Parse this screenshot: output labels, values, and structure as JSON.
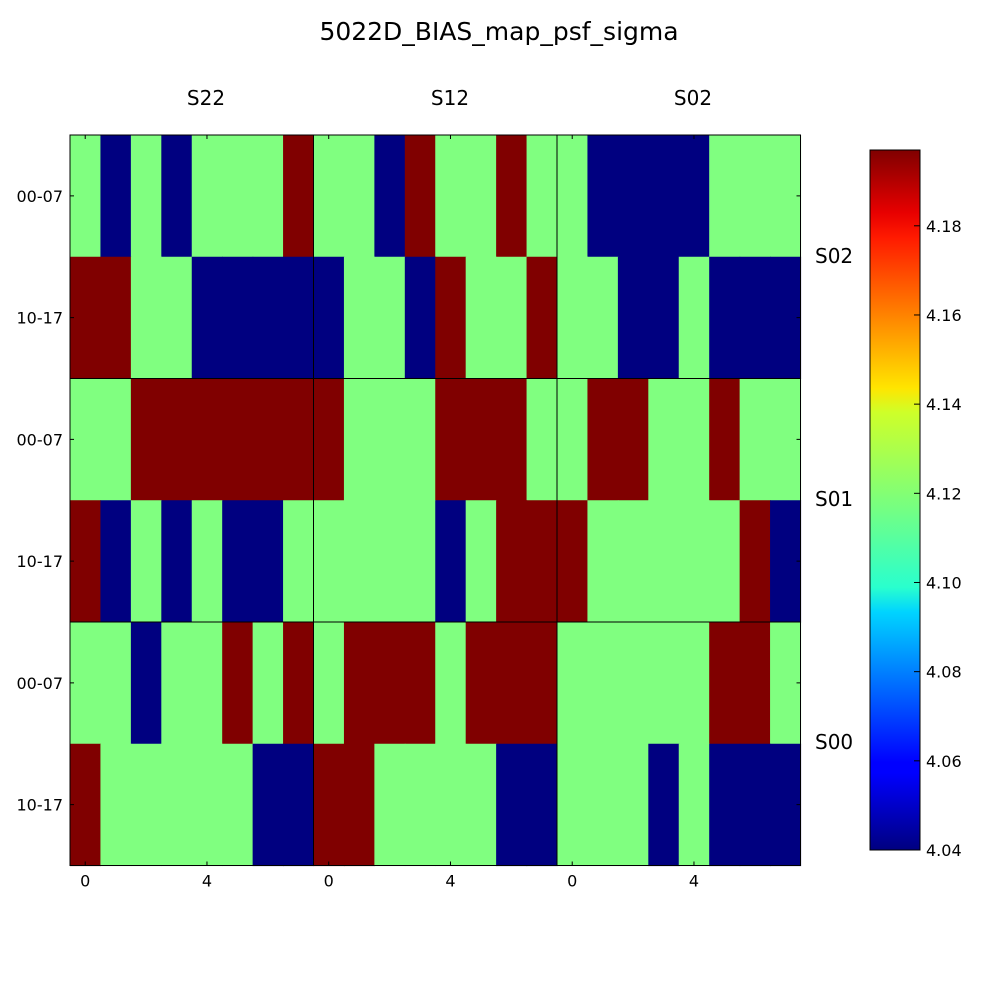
{
  "chart_data": {
    "type": "heatmap",
    "title": "5022D_BIAS_map_psf_sigma",
    "colormap": "jet",
    "colors": {
      "low": "#000080",
      "mid": "#80ff80",
      "high": "#800000"
    },
    "panel_columns": [
      "S22",
      "S12",
      "S02"
    ],
    "panel_rows": [
      "S02",
      "S01",
      "S00"
    ],
    "row_tick_labels": [
      "00-07",
      "10-17"
    ],
    "x_tick_labels": [
      "0",
      "4"
    ],
    "colorbar": {
      "min": 4.04,
      "max": 4.197,
      "ticks": [
        "4.04",
        "4.06",
        "4.08",
        "4.10",
        "4.12",
        "4.14",
        "4.16",
        "4.18"
      ]
    },
    "panels": [
      [
        [
          [
            4.12,
            4.04,
            4.12,
            4.04,
            4.12,
            4.12,
            4.12,
            4.197
          ],
          [
            4.197,
            4.197,
            4.12,
            4.12,
            4.04,
            4.04,
            4.04,
            4.04
          ]
        ],
        [
          [
            4.12,
            4.12,
            4.04,
            4.197,
            4.12,
            4.12,
            4.197,
            4.12
          ],
          [
            4.04,
            4.12,
            4.12,
            4.04,
            4.197,
            4.12,
            4.12,
            4.197
          ]
        ],
        [
          [
            4.12,
            4.04,
            4.04,
            4.04,
            4.04,
            4.12,
            4.12,
            4.12
          ],
          [
            4.12,
            4.12,
            4.04,
            4.04,
            4.12,
            4.04,
            4.04,
            4.04
          ]
        ]
      ],
      [
        [
          [
            4.12,
            4.12,
            4.197,
            4.197,
            4.197,
            4.197,
            4.197,
            4.197
          ],
          [
            4.197,
            4.04,
            4.12,
            4.04,
            4.12,
            4.04,
            4.04,
            4.12
          ]
        ],
        [
          [
            4.197,
            4.12,
            4.12,
            4.12,
            4.197,
            4.197,
            4.197,
            4.12
          ],
          [
            4.12,
            4.12,
            4.12,
            4.12,
            4.04,
            4.12,
            4.197,
            4.197
          ]
        ],
        [
          [
            4.12,
            4.197,
            4.197,
            4.12,
            4.12,
            4.197,
            4.12,
            4.12
          ],
          [
            4.197,
            4.12,
            4.12,
            4.12,
            4.12,
            4.12,
            4.197,
            4.04
          ]
        ]
      ],
      [
        [
          [
            4.12,
            4.12,
            4.04,
            4.12,
            4.12,
            4.197,
            4.12,
            4.197
          ],
          [
            4.197,
            4.12,
            4.12,
            4.12,
            4.12,
            4.12,
            4.04,
            4.04
          ]
        ],
        [
          [
            4.12,
            4.197,
            4.197,
            4.197,
            4.12,
            4.197,
            4.197,
            4.197
          ],
          [
            4.197,
            4.197,
            4.12,
            4.12,
            4.12,
            4.12,
            4.04,
            4.04
          ]
        ],
        [
          [
            4.12,
            4.12,
            4.12,
            4.12,
            4.12,
            4.197,
            4.197,
            4.12
          ],
          [
            4.12,
            4.12,
            4.12,
            4.04,
            4.12,
            4.04,
            4.04,
            4.04
          ]
        ]
      ]
    ]
  }
}
